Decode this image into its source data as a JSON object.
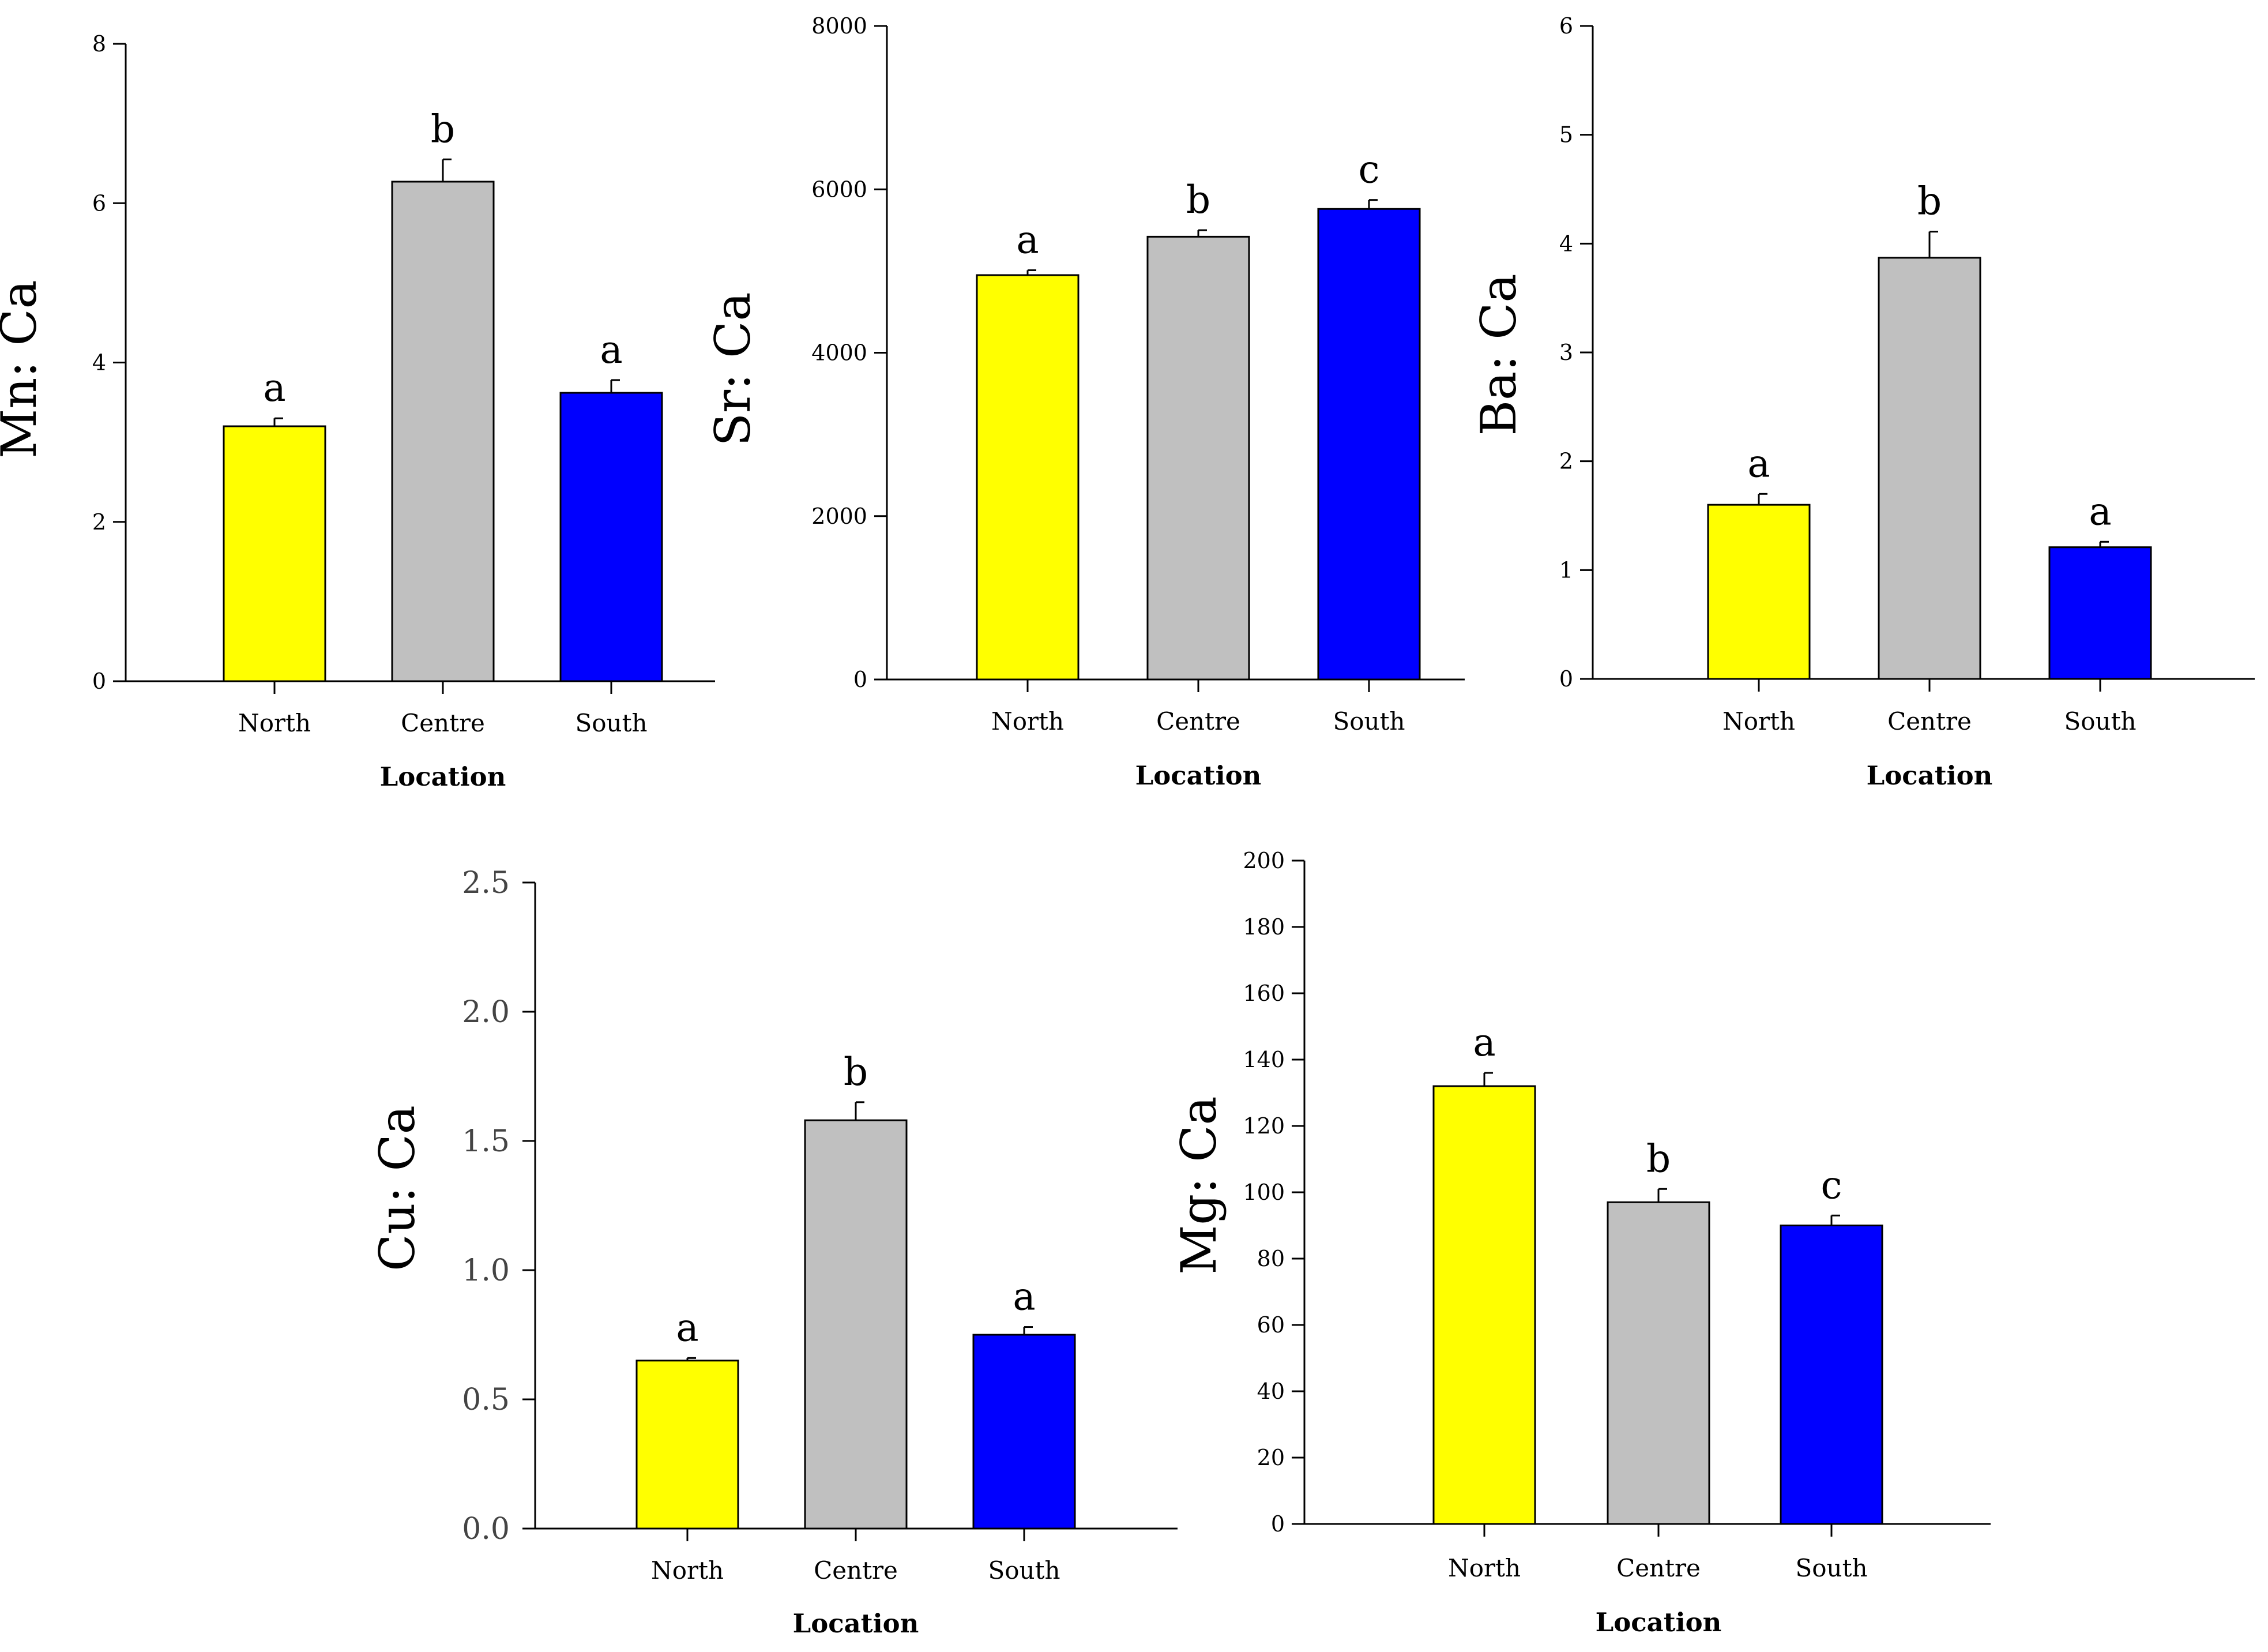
{
  "figure": {
    "background": "#ffffff",
    "bar_outline": "#000000",
    "colors": {
      "North": "#ffff00",
      "Centre": "#c0c0c0",
      "South": "#0000ff"
    }
  },
  "chart_data": [
    {
      "id": "mn",
      "type": "bar",
      "title": "",
      "ylabel": "Mn: Ca",
      "xlabel": "Location",
      "categories": [
        "North",
        "Centre",
        "South"
      ],
      "values": [
        3.2,
        6.27,
        3.62
      ],
      "errors": [
        0.1,
        0.28,
        0.16
      ],
      "significance": [
        "a",
        "b",
        "a"
      ],
      "ylim": [
        0,
        8
      ],
      "yticks": [
        0,
        2,
        4,
        6,
        8
      ],
      "ytick_labels": [
        "0",
        "2",
        "4",
        "6",
        "8"
      ],
      "colors": [
        "#ffff00",
        "#c0c0c0",
        "#0000ff"
      ]
    },
    {
      "id": "sr",
      "type": "bar",
      "title": "",
      "ylabel": "Sr: Ca",
      "xlabel": "Location",
      "categories": [
        "North",
        "Centre",
        "South"
      ],
      "values": [
        4950,
        5420,
        5760
      ],
      "errors": [
        60,
        80,
        110
      ],
      "significance": [
        "a",
        "b",
        "c"
      ],
      "ylim": [
        0,
        8000
      ],
      "yticks": [
        0,
        2000,
        4000,
        6000,
        8000
      ],
      "ytick_labels": [
        "0",
        "2000",
        "4000",
        "6000",
        "8000"
      ],
      "colors": [
        "#ffff00",
        "#c0c0c0",
        "#0000ff"
      ]
    },
    {
      "id": "ba",
      "type": "bar",
      "title": "",
      "ylabel": "Ba: Ca",
      "xlabel": "Location",
      "categories": [
        "North",
        "Centre",
        "South"
      ],
      "values": [
        1.6,
        3.87,
        1.21
      ],
      "errors": [
        0.1,
        0.24,
        0.05
      ],
      "significance": [
        "a",
        "b",
        "a"
      ],
      "ylim": [
        0,
        6
      ],
      "yticks": [
        0,
        1,
        2,
        3,
        4,
        5,
        6
      ],
      "ytick_labels": [
        "0",
        "1",
        "2",
        "3",
        "4",
        "5",
        "6"
      ],
      "colors": [
        "#ffff00",
        "#c0c0c0",
        "#0000ff"
      ]
    },
    {
      "id": "cu",
      "type": "bar",
      "title": "",
      "ylabel": "Cu: Ca",
      "xlabel": "Location",
      "categories": [
        "North",
        "Centre",
        "South"
      ],
      "values": [
        0.65,
        1.58,
        0.75
      ],
      "errors": [
        0.01,
        0.07,
        0.03
      ],
      "significance": [
        "a",
        "b",
        "a"
      ],
      "ylim": [
        0,
        2.5
      ],
      "yticks": [
        0,
        0.5,
        1.0,
        1.5,
        2.0,
        2.5
      ],
      "ytick_labels": [
        "0.0",
        "0.5",
        "1.0",
        "1.5",
        "2.0",
        "2.5"
      ],
      "colors": [
        "#ffff00",
        "#c0c0c0",
        "#0000ff"
      ]
    },
    {
      "id": "mg",
      "type": "bar",
      "title": "",
      "ylabel": "Mg: Ca",
      "xlabel": "Location",
      "categories": [
        "North",
        "Centre",
        "South"
      ],
      "values": [
        132,
        97,
        90
      ],
      "errors": [
        4,
        4,
        3
      ],
      "significance": [
        "a",
        "b",
        "c"
      ],
      "ylim": [
        0,
        200
      ],
      "yticks": [
        0,
        20,
        40,
        60,
        80,
        100,
        120,
        140,
        160,
        180,
        200
      ],
      "ytick_labels": [
        "0",
        "20",
        "40",
        "60",
        "80",
        "100",
        "120",
        "140",
        "160",
        "180",
        "200"
      ],
      "colors": [
        "#ffff00",
        "#c0c0c0",
        "#0000ff"
      ]
    }
  ]
}
